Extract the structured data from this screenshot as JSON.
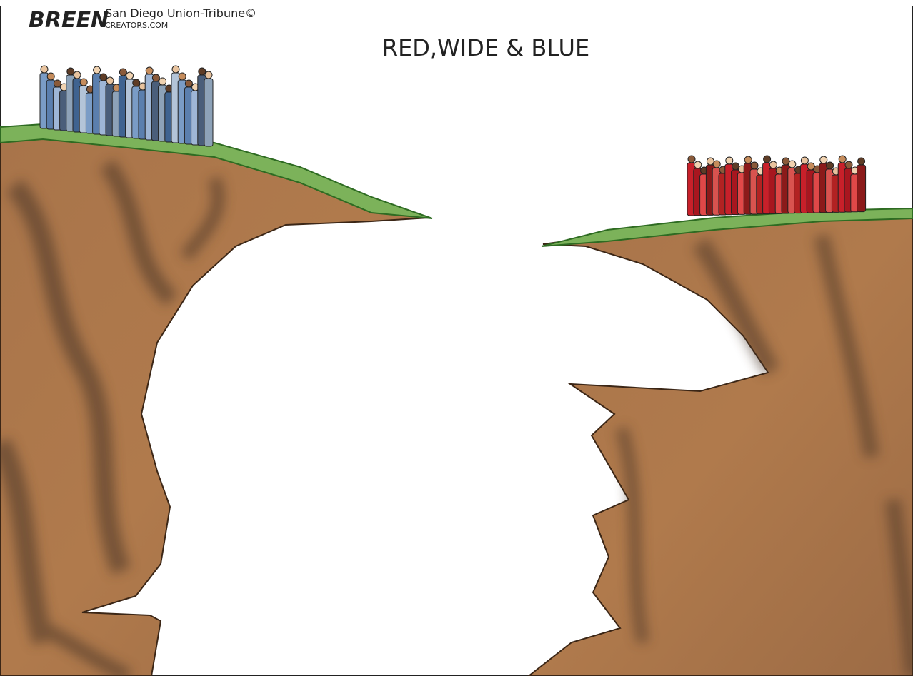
{
  "signature": "BREEN",
  "credit": {
    "publication": "San Diego Union-Tribune©",
    "syndicate": "CREATORS.COM"
  },
  "title": "RED,WIDE & BLUE"
}
